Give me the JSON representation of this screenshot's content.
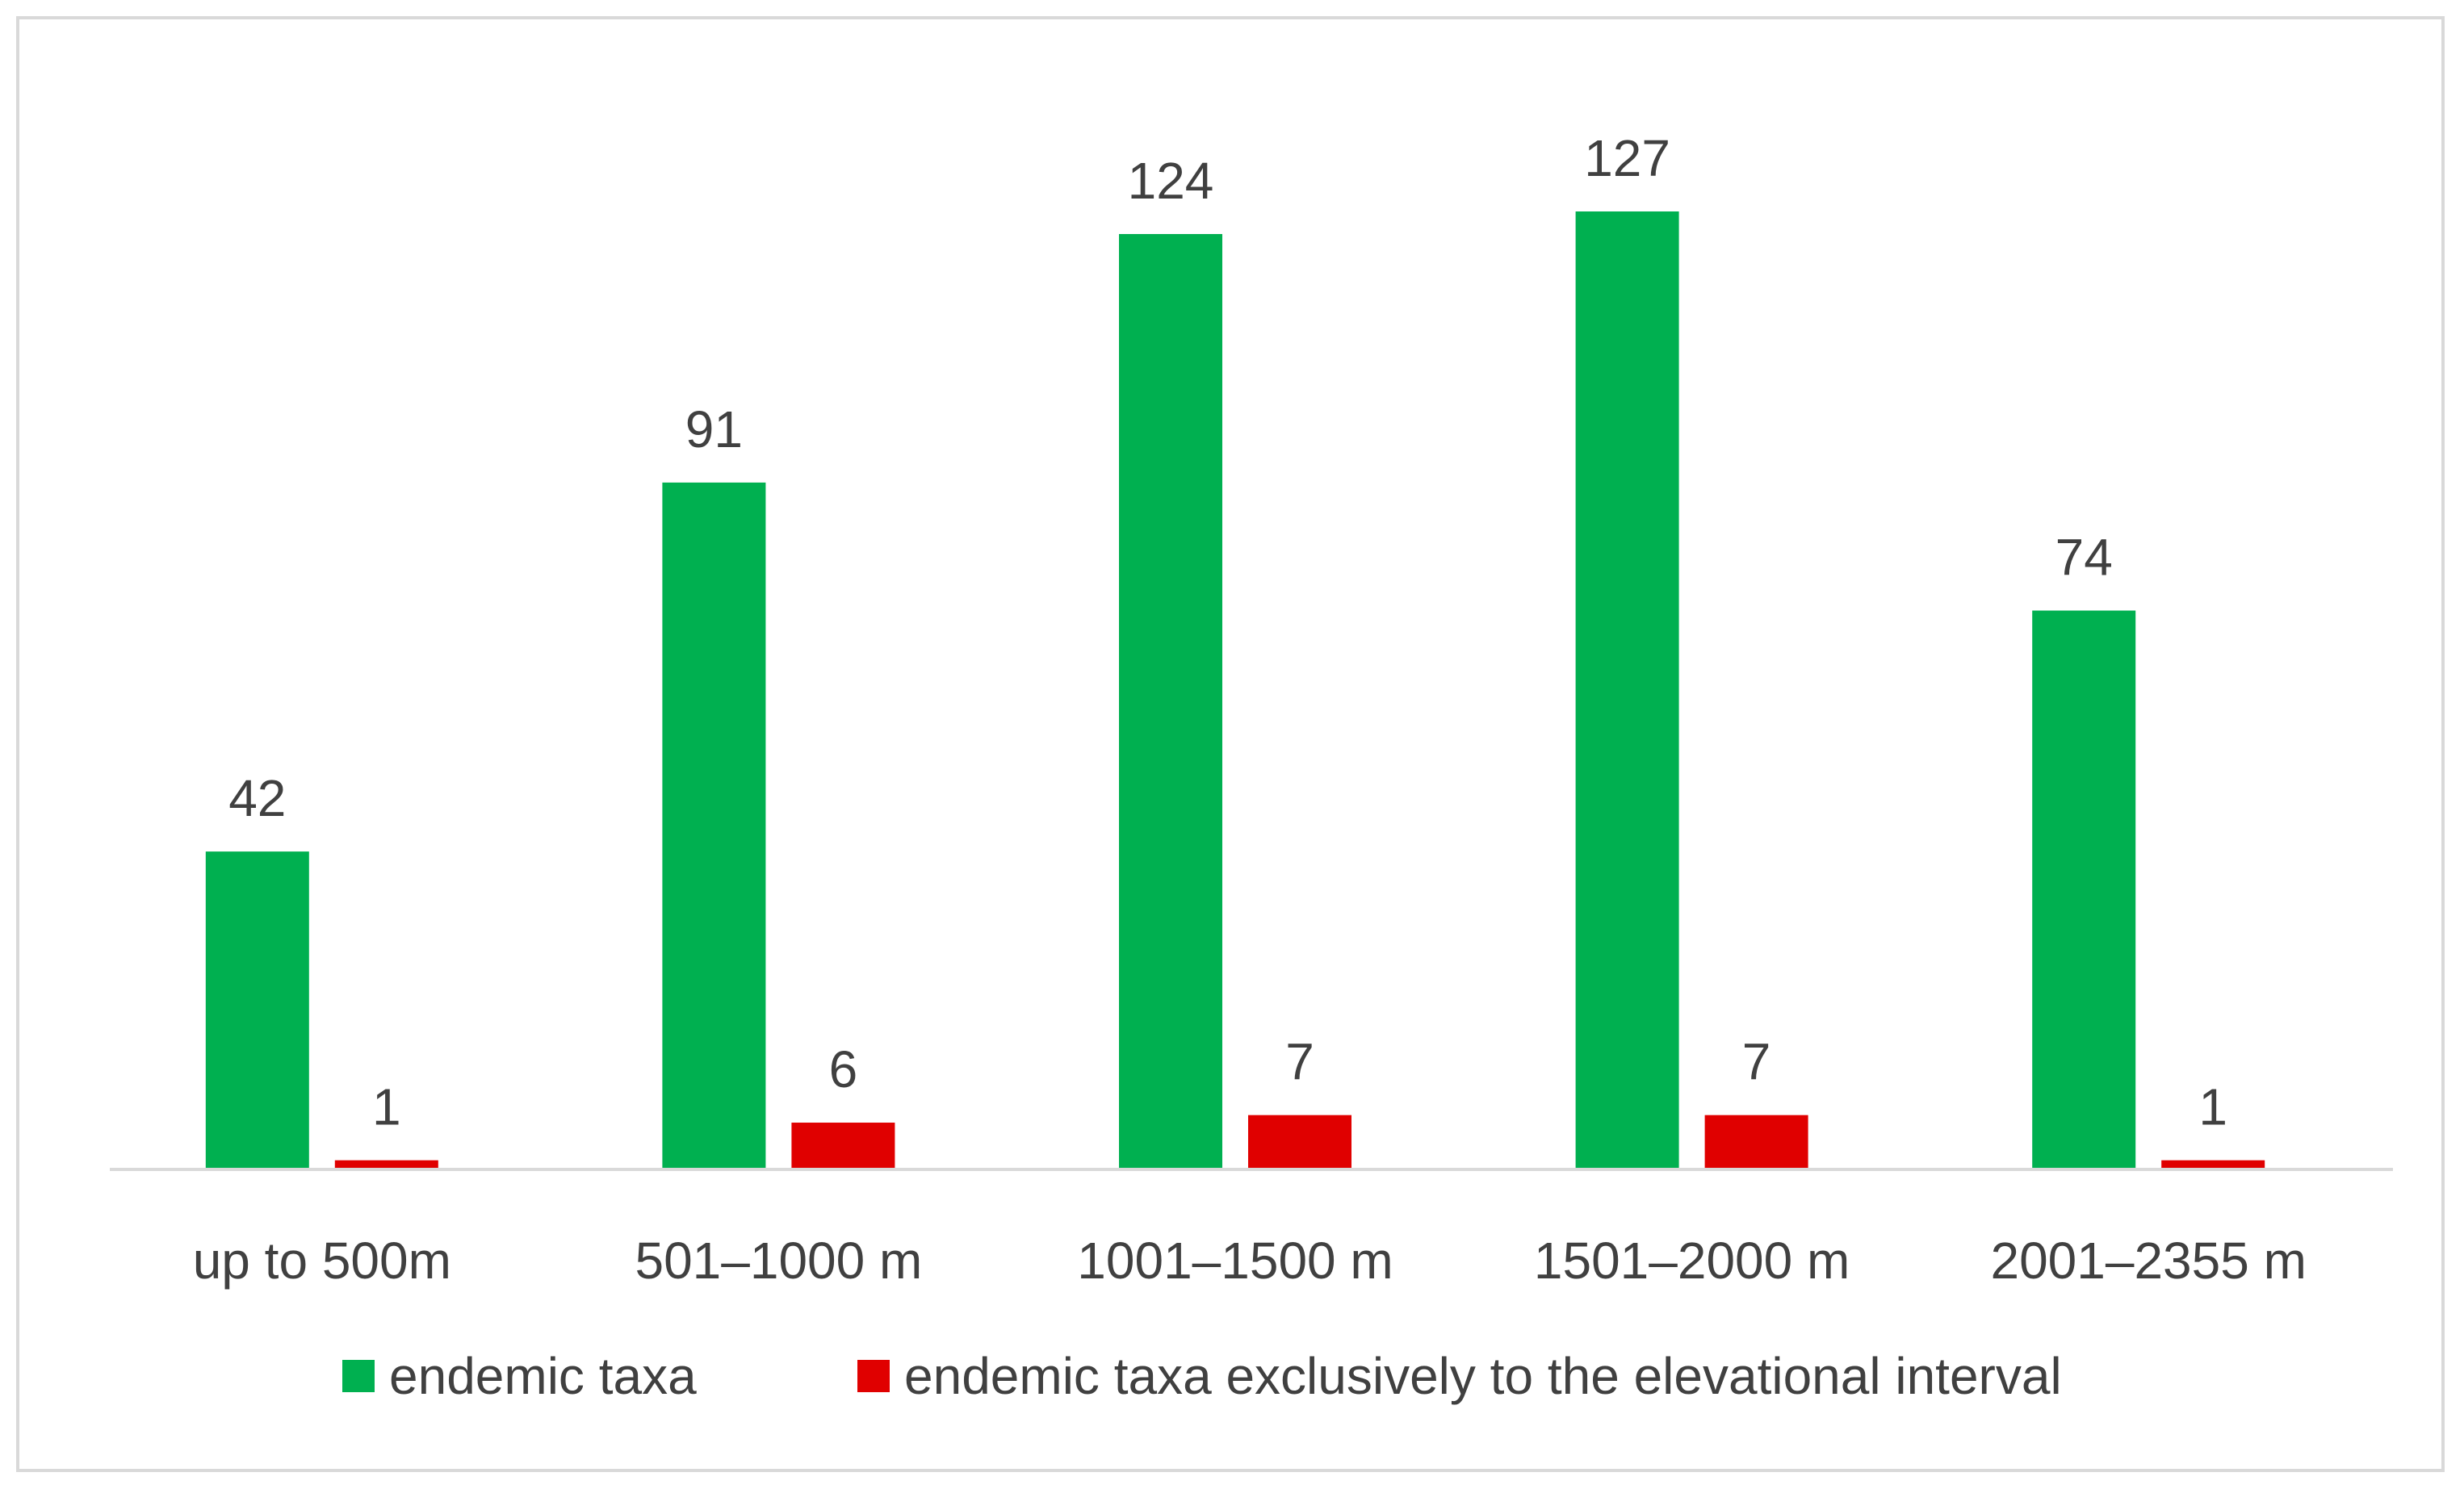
{
  "chart_data": {
    "type": "bar",
    "categories": [
      "up to 500m",
      "501–1000 m",
      "1001–1500 m",
      "1501–2000 m",
      "2001–2355 m"
    ],
    "series": [
      {
        "name": "endemic taxa",
        "values": [
          42,
          91,
          124,
          127,
          74
        ]
      },
      {
        "name": "endemic taxa exclusively to the elevational interval",
        "values": [
          1,
          6,
          7,
          7,
          1
        ]
      }
    ],
    "ylim": [
      0,
      130
    ],
    "colors": {
      "endemic taxa": "#00b050",
      "endemic taxa exclusively to the elevational interval": "#e00000"
    },
    "grid": false,
    "legend_position": "bottom",
    "data_labels": true
  }
}
